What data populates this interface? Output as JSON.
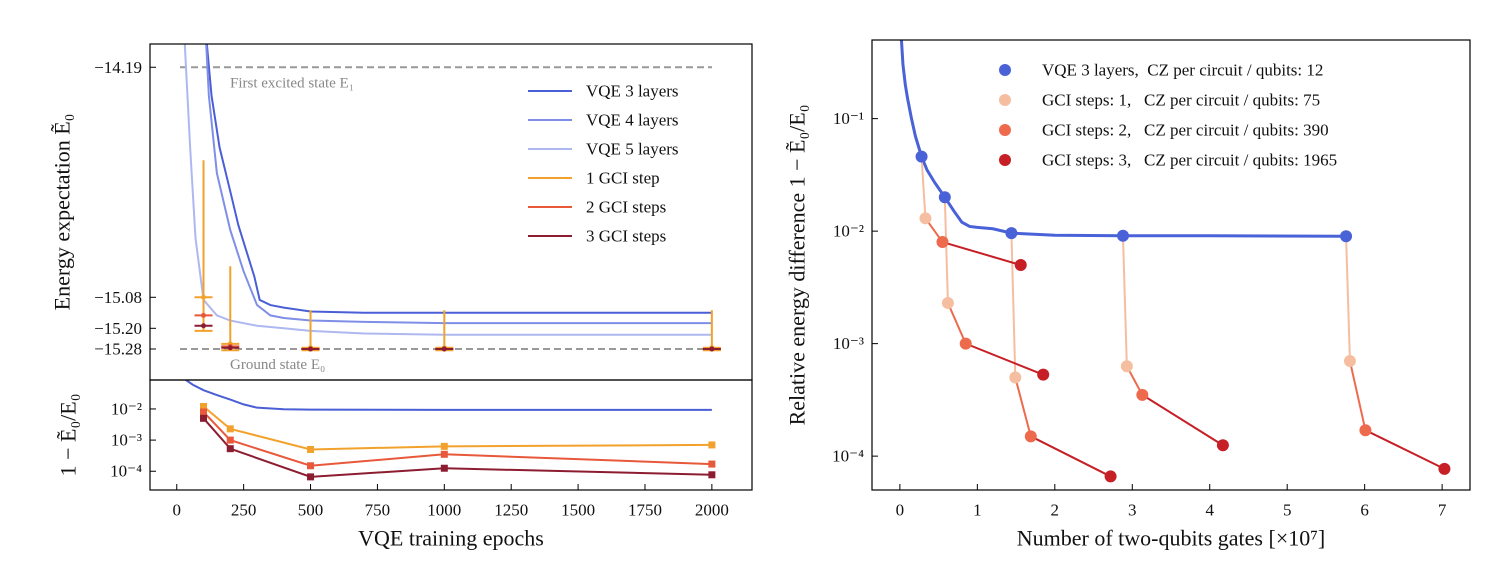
{
  "chart_data": [
    {
      "type": "line",
      "ylabel": "Energy expectation Ẽ₀",
      "xlim": [
        -100,
        2150
      ],
      "ylim": [
        -15.4,
        -14.1
      ],
      "yticks": [
        {
          "value": -14.19,
          "label": "−14.19"
        },
        {
          "value": -15.08,
          "label": "−15.08"
        },
        {
          "value": -15.2,
          "label": "−15.20"
        },
        {
          "value": -15.28,
          "label": "−15.28"
        }
      ],
      "legend": "upper right",
      "reference_lines": [
        {
          "label": "First excited state E₁",
          "value": -14.19
        },
        {
          "label": "Ground state E₀",
          "value": -15.28
        }
      ],
      "series": [
        {
          "name": "VQE 3 layers",
          "color": "#4a5fd6",
          "line": true,
          "x": [
            95,
            130,
            160,
            200,
            230,
            260,
            290,
            310,
            350,
            400,
            500,
            700,
            1000,
            1500,
            2000
          ],
          "values": [
            -13.9,
            -14.3,
            -14.5,
            -14.67,
            -14.8,
            -14.9,
            -15.0,
            -15.09,
            -15.11,
            -15.12,
            -15.135,
            -15.14,
            -15.14,
            -15.14,
            -15.14
          ]
        },
        {
          "name": "VQE 4 layers",
          "color": "#7f8ee6",
          "line": true,
          "x": [
            100,
            120,
            150,
            200,
            250,
            300,
            350,
            400,
            500,
            700,
            1000,
            1500,
            2000
          ],
          "values": [
            -13.9,
            -14.3,
            -14.6,
            -14.82,
            -14.98,
            -15.11,
            -15.15,
            -15.16,
            -15.17,
            -15.175,
            -15.18,
            -15.18,
            -15.18
          ]
        },
        {
          "name": "VQE 5 layers",
          "color": "#aeb8f0",
          "line": true,
          "x": [
            30,
            50,
            70,
            100,
            150,
            200,
            300,
            400,
            500,
            700,
            1000,
            1500,
            2000
          ],
          "values": [
            -14.1,
            -14.5,
            -14.85,
            -15.09,
            -15.15,
            -15.17,
            -15.19,
            -15.2,
            -15.21,
            -15.22,
            -15.225,
            -15.225,
            -15.225
          ]
        },
        {
          "name": "1 GCI step",
          "color": "#f2a22c",
          "marker": "bar",
          "x": [
            100,
            200,
            500,
            1000,
            2000
          ],
          "values": [
            -15.08,
            -15.26,
            -15.275,
            -15.275,
            -15.275
          ],
          "lower": [
            -15.21,
            -15.285,
            -15.285,
            -15.285,
            -15.285
          ],
          "upper": [
            -14.55,
            -14.96,
            -15.13,
            -15.13,
            -15.13
          ]
        },
        {
          "name": "2 GCI steps",
          "color": "#e8583a",
          "marker": "bar",
          "x": [
            100,
            200,
            500,
            1000,
            2000
          ],
          "values": [
            -15.15,
            -15.27,
            -15.28,
            -15.28,
            -15.28
          ]
        },
        {
          "name": "3 GCI steps",
          "color": "#8c1c30",
          "marker": "bar",
          "x": [
            100,
            200,
            500,
            1000,
            2000
          ],
          "values": [
            -15.19,
            -15.275,
            -15.28,
            -15.28,
            -15.28
          ]
        }
      ]
    },
    {
      "type": "line",
      "ylabel": "1 − Ẽ₀/E₀",
      "xlabel": "VQE training epochs",
      "yscale": "log",
      "xlim": [
        -100,
        2150
      ],
      "ylim": [
        2.5e-05,
        0.085
      ],
      "xticks": [
        0,
        250,
        500,
        750,
        1000,
        1250,
        1500,
        1750,
        2000
      ],
      "yticks": [
        {
          "value": 0.01,
          "label": "10⁻²"
        },
        {
          "value": 0.001,
          "label": "10⁻³"
        },
        {
          "value": 0.0001,
          "label": "10⁻⁴"
        }
      ],
      "series": [
        {
          "color": "#4a5fd6",
          "line": true,
          "x": [
            30,
            60,
            100,
            150,
            200,
            250,
            300,
            400,
            500,
            1000,
            1500,
            2000
          ],
          "values": [
            0.09,
            0.06,
            0.04,
            0.028,
            0.02,
            0.014,
            0.011,
            0.0098,
            0.0095,
            0.0093,
            0.0093,
            0.0093
          ]
        },
        {
          "color": "#f2a22c",
          "line": true,
          "marker": "square",
          "x": [
            100,
            200,
            500,
            1000,
            2000
          ],
          "values": [
            0.012,
            0.0023,
            0.0005,
            0.00063,
            0.0007
          ]
        },
        {
          "color": "#e8583a",
          "line": true,
          "marker": "square",
          "x": [
            100,
            200,
            500,
            1000,
            2000
          ],
          "values": [
            0.008,
            0.001,
            0.00015,
            0.00035,
            0.00017
          ]
        },
        {
          "color": "#8c1c30",
          "line": true,
          "marker": "square",
          "x": [
            100,
            200,
            500,
            1000,
            2000
          ],
          "values": [
            0.005,
            0.00053,
            6.6e-05,
            0.000125,
            7.7e-05
          ]
        }
      ]
    },
    {
      "type": "scatter",
      "ylabel": "Relative energy difference 1 − Ẽ₀/E₀",
      "xlabel": "Number of two-qubits gates [×10⁷]",
      "yscale": "log",
      "xlim": [
        -0.36,
        7.36
      ],
      "ylim": [
        5e-05,
        0.5
      ],
      "xticks": [
        0,
        1,
        2,
        3,
        4,
        5,
        6,
        7
      ],
      "yticks": [
        {
          "value": 0.1,
          "label": "10⁻¹"
        },
        {
          "value": 0.01,
          "label": "10⁻²"
        },
        {
          "value": 0.001,
          "label": "10⁻³"
        },
        {
          "value": 0.0001,
          "label": "10⁻⁴"
        }
      ],
      "legend": "upper right",
      "series": [
        {
          "name": "VQE 3 layers,  CZ per circuit / qubits: 12",
          "color": "#4a62d8",
          "marker": "circle",
          "curve": {
            "x": [
              0.02,
              0.04,
              0.07,
              0.1,
              0.15,
              0.2,
              0.28,
              0.35,
              0.45,
              0.58,
              0.7,
              0.8,
              0.9,
              1.0,
              1.2,
              1.44,
              2.0,
              2.88,
              4.0,
              5.76
            ],
            "values": [
              0.5,
              0.3,
              0.2,
              0.15,
              0.1,
              0.07,
              0.046,
              0.035,
              0.027,
              0.02,
              0.015,
              0.012,
              0.011,
              0.0108,
              0.0105,
              0.0096,
              0.0092,
              0.0091,
              0.0091,
              0.009
            ]
          },
          "x": [
            0.28,
            0.58,
            1.44,
            2.88,
            5.76
          ],
          "values": [
            0.046,
            0.02,
            0.0096,
            0.0091,
            0.009
          ]
        },
        {
          "name": "GCI steps: 1,   CZ per circuit / qubits: 75",
          "color": "#f6bea0",
          "marker": "circle",
          "chain": true,
          "x": [
            0.33,
            0.62,
            1.49,
            2.93,
            5.81
          ],
          "values": [
            0.013,
            0.0023,
            0.0005,
            0.00063,
            0.0007
          ]
        },
        {
          "name": "GCI steps: 2,   CZ per circuit / qubits: 390",
          "color": "#ee6a4c",
          "marker": "circle",
          "chain": true,
          "x": [
            0.55,
            0.85,
            1.69,
            3.13,
            6.01
          ],
          "values": [
            0.008,
            0.001,
            0.00015,
            0.00035,
            0.00017
          ]
        },
        {
          "name": "GCI steps: 3,   CZ per circuit / qubits: 1965",
          "color": "#c61f25",
          "marker": "circle",
          "chain": true,
          "x": [
            1.56,
            1.85,
            2.72,
            4.17,
            7.03
          ],
          "values": [
            0.005,
            0.00053,
            6.6e-05,
            0.000125,
            7.7e-05
          ]
        }
      ]
    }
  ]
}
